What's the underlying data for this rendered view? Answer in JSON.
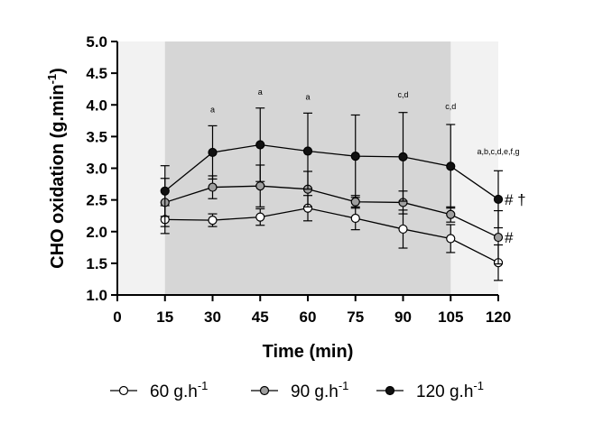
{
  "chart_data": {
    "type": "line",
    "ylabel_main": "CHO oxidation (g.min",
    "ylabel_sup": "-1",
    "ylabel_end": ")",
    "xlabel": "Time (min)",
    "xlim": [
      0,
      120
    ],
    "ylim": [
      1.0,
      5.0
    ],
    "xticks": [
      0,
      15,
      30,
      45,
      60,
      75,
      90,
      105,
      120
    ],
    "yticks": [
      "1.0",
      "1.5",
      "2.0",
      "2.5",
      "3.0",
      "3.5",
      "4.0",
      "4.5",
      "5.0"
    ],
    "shaded_region": [
      15,
      105
    ],
    "x": [
      15,
      30,
      45,
      60,
      75,
      90,
      105,
      120
    ],
    "series": [
      {
        "name": "60 g.h",
        "name_sup": "-1",
        "fill": "#ffffff",
        "values": [
          2.19,
          2.18,
          2.23,
          2.37,
          2.21,
          2.04,
          1.89,
          1.51
        ],
        "errors": [
          0.22,
          0.1,
          0.13,
          0.2,
          0.18,
          0.3,
          0.22,
          0.28
        ]
      },
      {
        "name": "90 g.h",
        "name_sup": "-1",
        "fill": "#9e9e9e",
        "values": [
          2.46,
          2.7,
          2.72,
          2.67,
          2.47,
          2.46,
          2.27,
          1.91
        ],
        "errors": [
          0.38,
          0.18,
          0.33,
          0.28,
          0.1,
          0.18,
          0.12,
          0.42
        ]
      },
      {
        "name": "120 g.h",
        "name_sup": "-1",
        "fill": "#111111",
        "values": [
          2.64,
          3.25,
          3.37,
          3.27,
          3.19,
          3.18,
          3.03,
          2.51
        ],
        "errors": [
          0.4,
          0.42,
          0.58,
          0.6,
          0.65,
          0.7,
          0.66,
          0.45
        ]
      }
    ],
    "annotations": [
      {
        "x": 30,
        "y": 3.88,
        "text": "a"
      },
      {
        "x": 45,
        "y": 4.16,
        "text": "a"
      },
      {
        "x": 60,
        "y": 4.08,
        "text": "a"
      },
      {
        "x": 90,
        "y": 4.12,
        "text": "c,d"
      },
      {
        "x": 105,
        "y": 3.93,
        "text": "c,d"
      },
      {
        "x": 120,
        "y": 3.22,
        "text": "a,b,c,d,e,f,g"
      }
    ],
    "markers": [
      {
        "series": 2,
        "text": "# †"
      },
      {
        "series": 1,
        "text": "#"
      }
    ]
  }
}
